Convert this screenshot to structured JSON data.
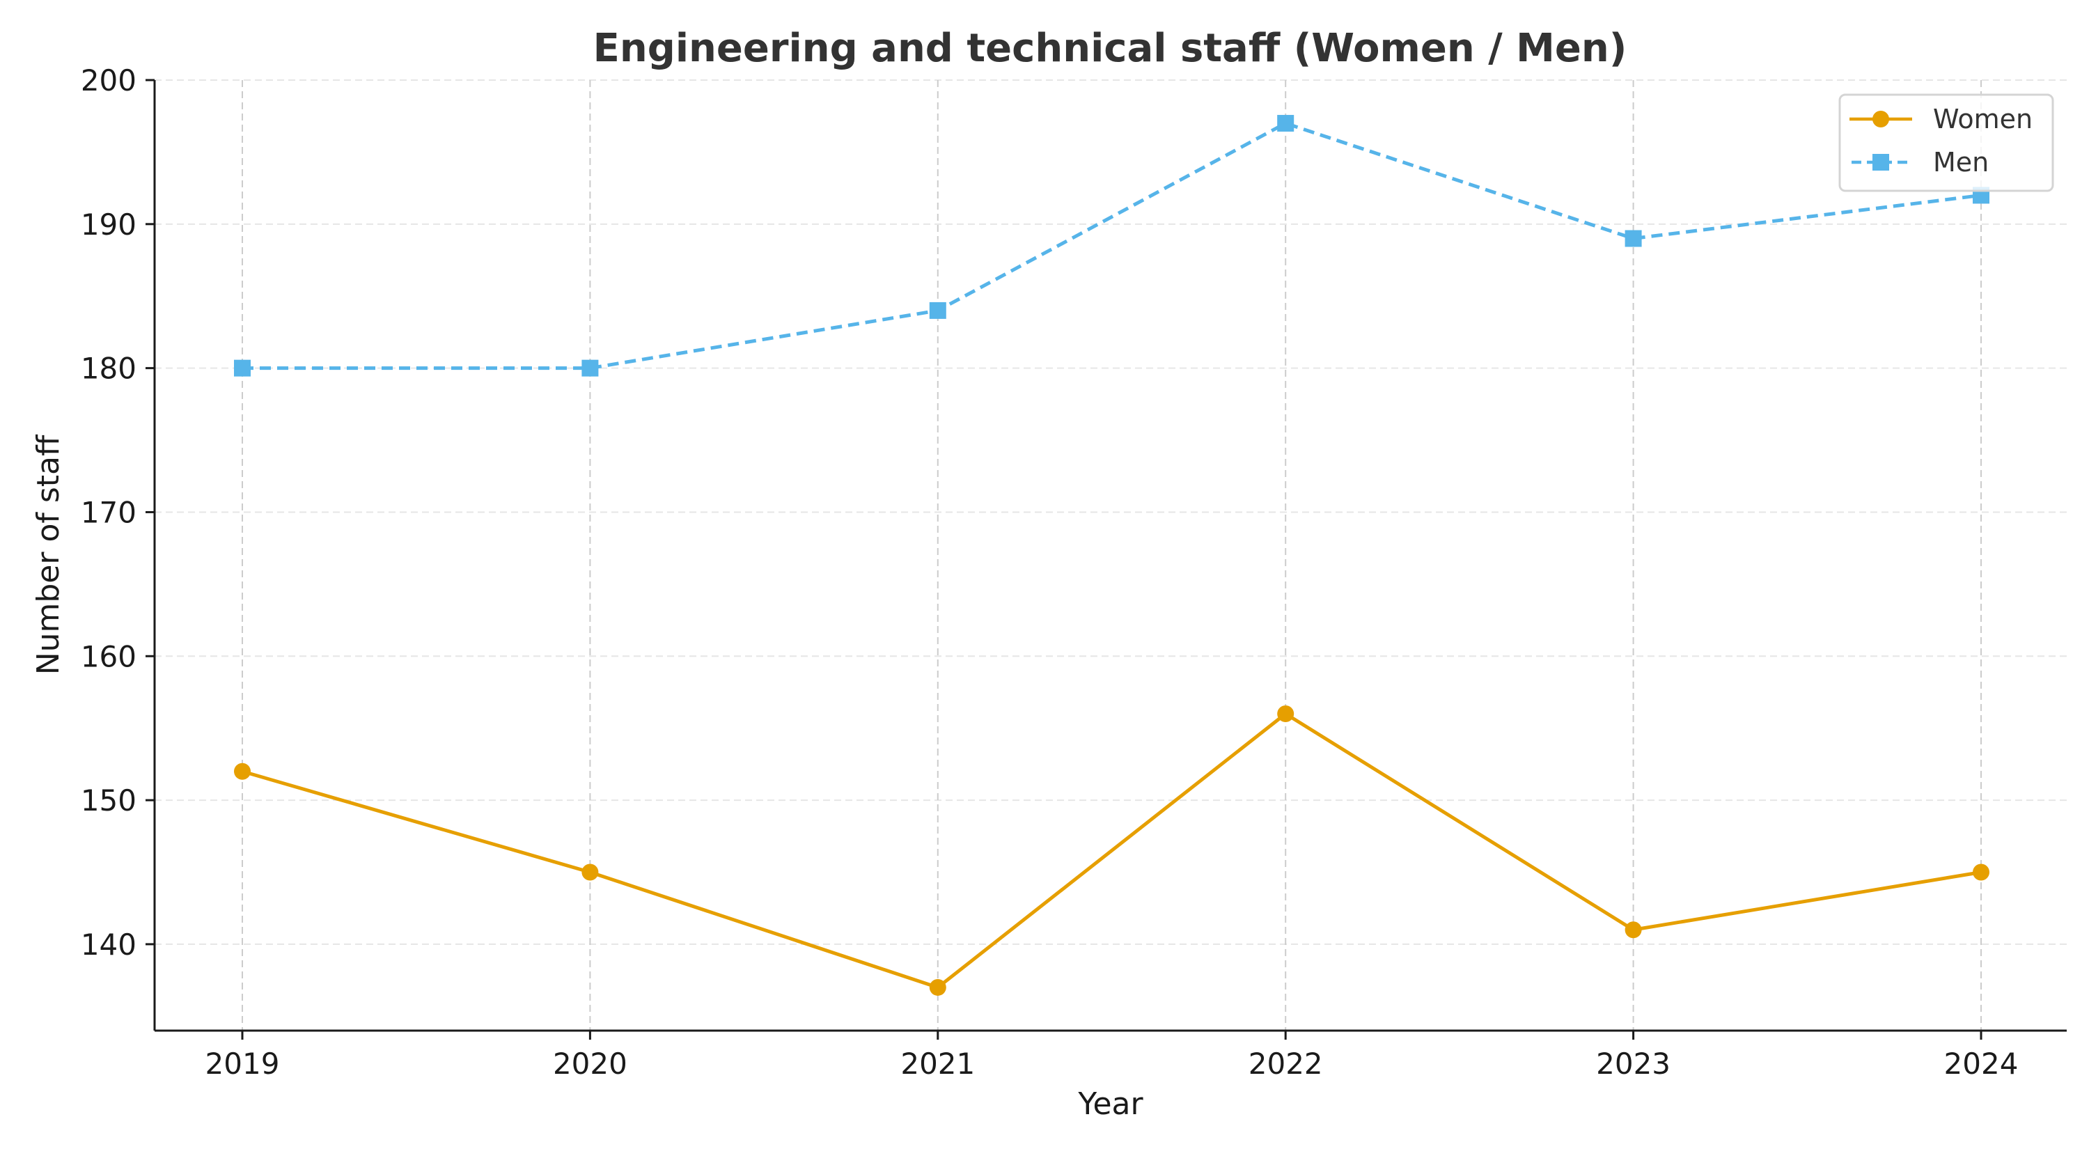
{
  "chart_data": {
    "type": "line",
    "title": "Engineering and technical staff (Women / Men)",
    "xlabel": "Year",
    "ylabel": "Number of staff",
    "x": [
      "2019",
      "2020",
      "2021",
      "2022",
      "2023",
      "2024"
    ],
    "yticks": [
      140,
      150,
      160,
      170,
      180,
      190,
      200
    ],
    "ylim": [
      134,
      200
    ],
    "grid": true,
    "legend_position": "top-right",
    "series": [
      {
        "name": "Women",
        "values": [
          152,
          145,
          137,
          156,
          141,
          145
        ],
        "color": "#E69F00",
        "marker": "circle",
        "linestyle": "solid"
      },
      {
        "name": "Men",
        "values": [
          180,
          180,
          184,
          197,
          189,
          192
        ],
        "color": "#56B4E9",
        "marker": "square",
        "linestyle": "dashed"
      }
    ]
  }
}
